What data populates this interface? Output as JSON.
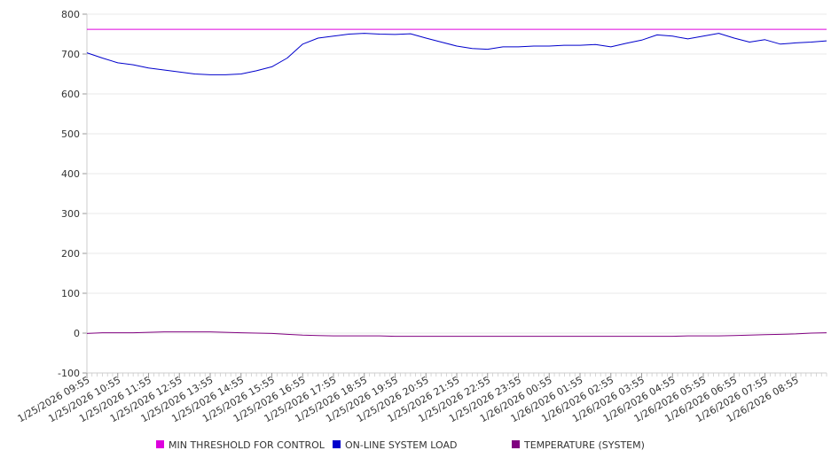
{
  "chart_data": {
    "type": "line",
    "title": "",
    "xlabel": "",
    "ylabel": "",
    "ylim": [
      -100,
      800
    ],
    "yticks": [
      -100,
      0,
      100,
      200,
      300,
      400,
      500,
      600,
      700,
      800
    ],
    "grid": true,
    "legend_position": "bottom",
    "x_tick_labels": [
      "1/25/2026 09:55",
      "1/25/2026 10:55",
      "1/25/2026 11:55",
      "1/25/2026 12:55",
      "1/25/2026 13:55",
      "1/25/2026 14:55",
      "1/25/2026 15:55",
      "1/25/2026 16:55",
      "1/25/2026 17:55",
      "1/25/2026 18:55",
      "1/25/2026 19:55",
      "1/25/2026 20:55",
      "1/25/2026 21:55",
      "1/25/2026 22:55",
      "1/25/2026 23:55",
      "1/26/2026 00:55",
      "1/26/2026 01:55",
      "1/26/2026 02:55",
      "1/26/2026 03:55",
      "1/26/2026 04:55",
      "1/26/2026 05:55",
      "1/26/2026 06:55",
      "1/26/2026 07:55",
      "1/26/2026 08:55"
    ],
    "x_hours": [
      0,
      0.5,
      1,
      1.5,
      2,
      2.5,
      3,
      3.5,
      4,
      4.5,
      5,
      5.5,
      6,
      6.5,
      7,
      7.5,
      8,
      8.5,
      9,
      9.5,
      10,
      10.5,
      11,
      11.5,
      12,
      12.5,
      13,
      13.5,
      14,
      14.5,
      15,
      15.5,
      16,
      16.5,
      17,
      17.5,
      18,
      18.5,
      19,
      19.5,
      20,
      20.5,
      21,
      21.5,
      22,
      22.5,
      23,
      23.5,
      24
    ],
    "series": [
      {
        "name": "MIN THRESHOLD FOR CONTROL",
        "color": "#dd00dd",
        "values": [
          762,
          762,
          762,
          762,
          762,
          762,
          762,
          762,
          762,
          762,
          762,
          762,
          762,
          762,
          762,
          762,
          762,
          762,
          762,
          762,
          762,
          762,
          762,
          762,
          762,
          762,
          762,
          762,
          762,
          762,
          762,
          762,
          762,
          762,
          762,
          762,
          762,
          762,
          762,
          762,
          762,
          762,
          762,
          762,
          762,
          762,
          762,
          762,
          762
        ]
      },
      {
        "name": "ON-LINE SYSTEM LOAD",
        "color": "#0000cc",
        "values": [
          703,
          690,
          678,
          673,
          665,
          660,
          655,
          650,
          648,
          648,
          650,
          658,
          668,
          690,
          725,
          740,
          745,
          750,
          752,
          750,
          749,
          751,
          740,
          730,
          720,
          714,
          712,
          718,
          718,
          720,
          720,
          722,
          722,
          724,
          718,
          727,
          735,
          748,
          745,
          738,
          745,
          752,
          740,
          730,
          736,
          725,
          728,
          730,
          733
        ]
      },
      {
        "name": "TEMPERATURE (SYSTEM)",
        "color": "#800080",
        "values": [
          -1,
          1,
          1,
          1,
          2,
          3,
          3,
          3,
          3,
          2,
          1,
          0,
          -1,
          -3,
          -5,
          -6,
          -7,
          -7,
          -7,
          -7,
          -8,
          -8,
          -8,
          -8,
          -8,
          -8,
          -8,
          -8,
          -8,
          -8,
          -8,
          -8,
          -8,
          -8,
          -8,
          -8,
          -8,
          -8,
          -8,
          -7,
          -7,
          -7,
          -6,
          -5,
          -4,
          -3,
          -2,
          0,
          1
        ]
      }
    ]
  }
}
